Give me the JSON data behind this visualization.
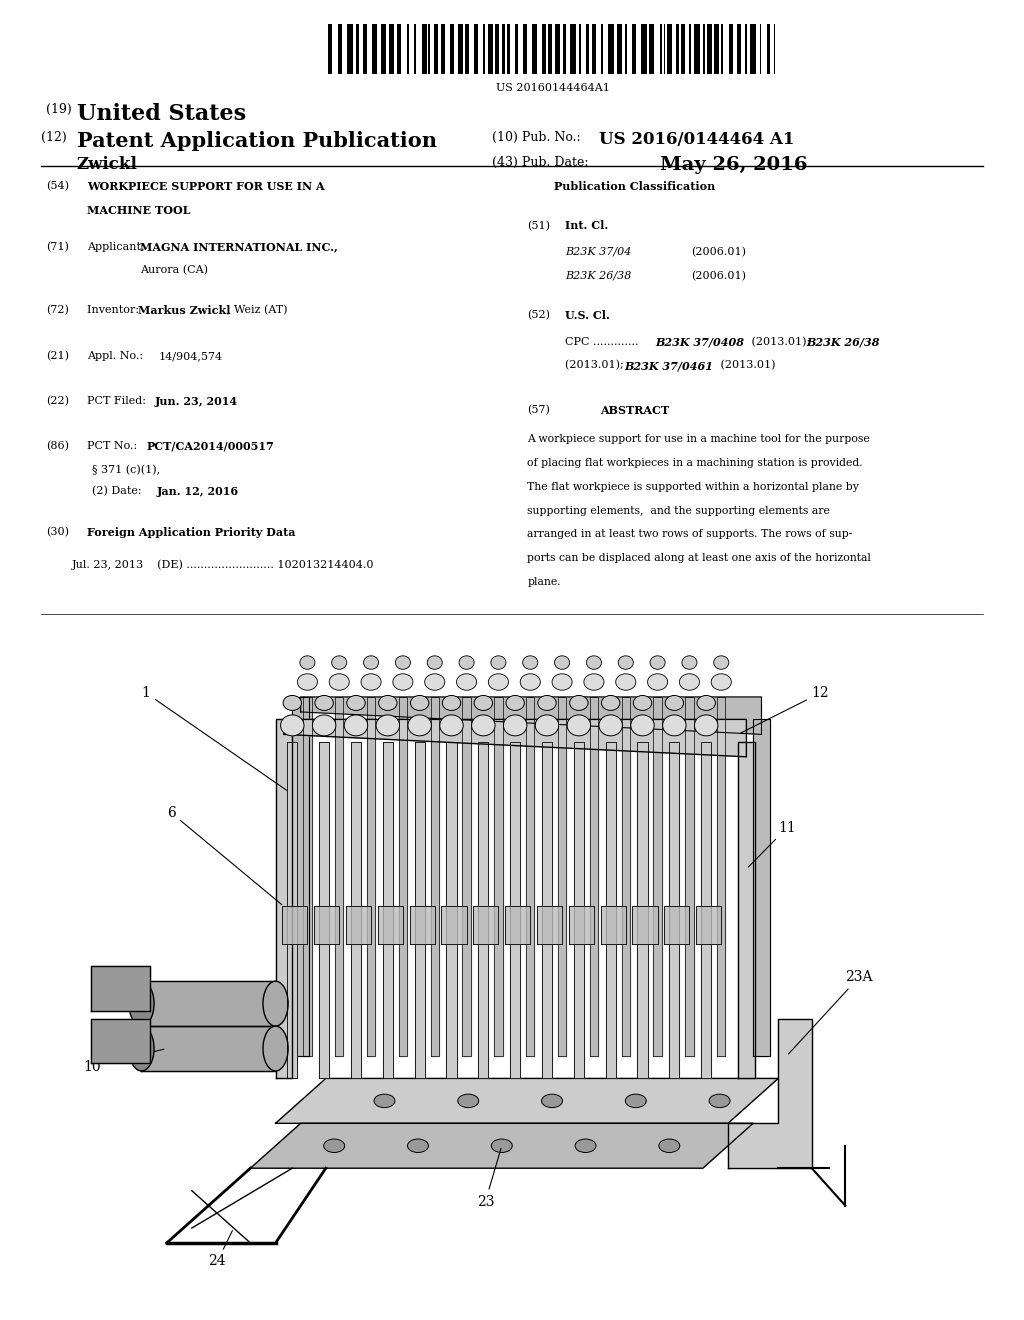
{
  "background_color": "#ffffff",
  "barcode_text": "US 20160144464A1",
  "header": {
    "line1_num": "(19)",
    "line1_text": "United States",
    "line2_num": "(12)",
    "line2_text": "Patent Application Publication",
    "line3_author": "Zwickl",
    "pub_num_label": "(10) Pub. No.:",
    "pub_num_value": "US 2016/0144464 A1",
    "pub_date_label": "(43) Pub. Date:",
    "pub_date_value": "May 26, 2016"
  },
  "abstract_lines": [
    "A workpiece support for use in a machine tool for the purpose",
    "of placing flat workpieces in a machining station is provided.",
    "The flat workpiece is supported within a horizontal plane by",
    "supporting elements,  and the supporting elements are",
    "arranged in at least two rows of supports. The rows of sup-",
    "ports can be displaced along at least one axis of the horizontal",
    "plane."
  ]
}
